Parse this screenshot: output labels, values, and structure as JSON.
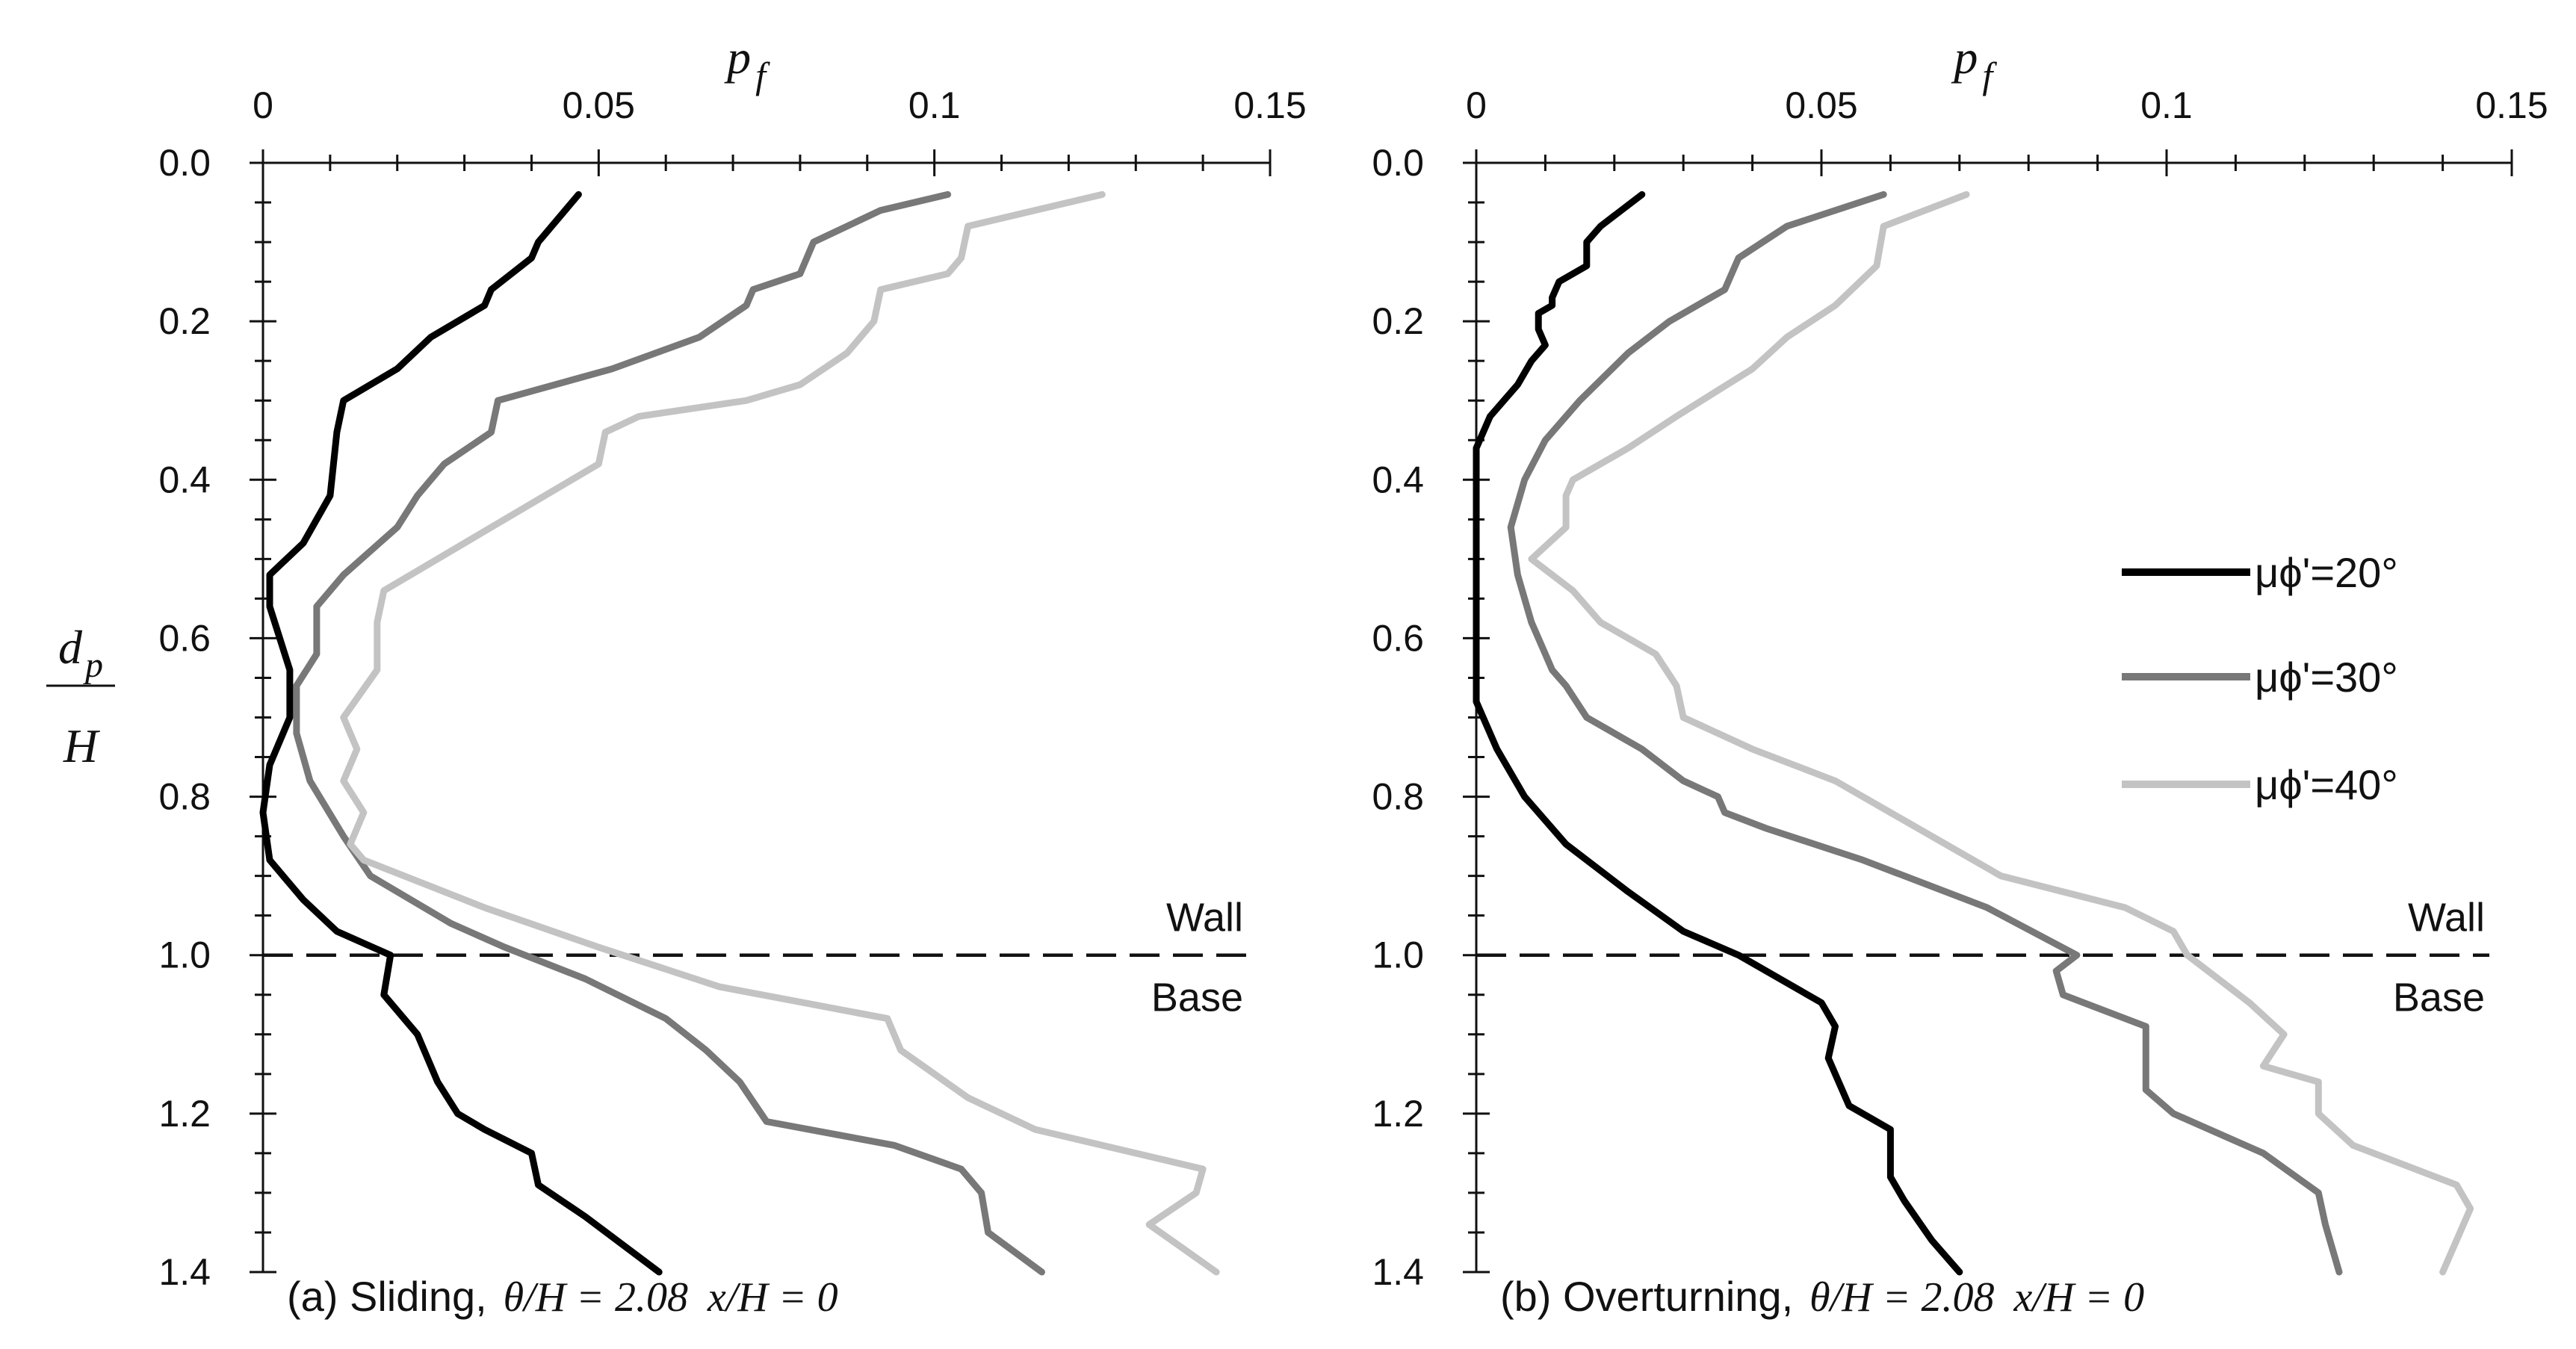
{
  "chart_data": [
    {
      "type": "line",
      "title": "",
      "xlabel": "p_f",
      "ylabel": "d_p / H",
      "xlim": [
        0,
        0.15
      ],
      "ylim": [
        0,
        1.4
      ],
      "x_ticks": [
        0,
        0.05,
        0.1,
        0.15
      ],
      "x_tick_labels": [
        "0",
        "0.05",
        "0.1",
        "0.15"
      ],
      "y_ticks": [
        0,
        0.2,
        0.4,
        0.6,
        0.8,
        1.0,
        1.2,
        1.4
      ],
      "y_tick_labels": [
        "0.0",
        "0.2",
        "0.4",
        "0.6",
        "0.8",
        "1.0",
        "1.2",
        "1.4"
      ],
      "x_axis_position": "top",
      "y_axis_inverted": true,
      "grid": false,
      "annotations": {
        "above_line": "Wall",
        "below_line": "Base",
        "reference_line_y": 1.0
      },
      "caption": {
        "prefix": "(a) Sliding,",
        "theta_expr": "θ/H = 2.08",
        "x_expr": "x/H = 0"
      },
      "series": [
        {
          "name": "μϕ'=20°",
          "color": "#000000",
          "x": [
            0.047,
            0.041,
            0.04,
            0.034,
            0.033,
            0.025,
            0.02,
            0.012,
            0.011,
            0.01,
            0.006,
            0.001,
            0.001,
            0.004,
            0.004,
            0.001,
            0.0,
            0.001,
            0.006,
            0.011,
            0.019,
            0.018,
            0.023,
            0.026,
            0.029,
            0.033,
            0.04,
            0.041,
            0.048,
            0.059
          ],
          "y": [
            0.04,
            0.1,
            0.12,
            0.16,
            0.18,
            0.22,
            0.26,
            0.3,
            0.34,
            0.42,
            0.48,
            0.52,
            0.56,
            0.64,
            0.7,
            0.76,
            0.82,
            0.88,
            0.93,
            0.97,
            1.0,
            1.05,
            1.1,
            1.16,
            1.2,
            1.22,
            1.25,
            1.29,
            1.33,
            1.4
          ]
        },
        {
          "name": "μϕ'=30°",
          "color": "#787878",
          "x": [
            0.102,
            0.092,
            0.082,
            0.08,
            0.073,
            0.072,
            0.065,
            0.052,
            0.035,
            0.034,
            0.027,
            0.023,
            0.02,
            0.012,
            0.008,
            0.008,
            0.005,
            0.005,
            0.007,
            0.012,
            0.016,
            0.028,
            0.036,
            0.048,
            0.06,
            0.066,
            0.071,
            0.075,
            0.094,
            0.104,
            0.107,
            0.108,
            0.116
          ],
          "y": [
            0.04,
            0.06,
            0.1,
            0.14,
            0.16,
            0.18,
            0.22,
            0.26,
            0.3,
            0.34,
            0.38,
            0.42,
            0.46,
            0.52,
            0.56,
            0.62,
            0.66,
            0.72,
            0.78,
            0.85,
            0.9,
            0.96,
            0.99,
            1.03,
            1.08,
            1.12,
            1.16,
            1.21,
            1.24,
            1.27,
            1.3,
            1.35,
            1.4
          ]
        },
        {
          "name": "μϕ'=40°",
          "color": "#c3c3c3",
          "x": [
            0.125,
            0.105,
            0.104,
            0.102,
            0.092,
            0.091,
            0.087,
            0.08,
            0.072,
            0.056,
            0.051,
            0.05,
            0.042,
            0.03,
            0.018,
            0.017,
            0.017,
            0.012,
            0.014,
            0.012,
            0.015,
            0.013,
            0.015,
            0.021,
            0.033,
            0.05,
            0.068,
            0.093,
            0.095,
            0.105,
            0.115,
            0.14,
            0.139,
            0.132,
            0.137,
            0.142
          ],
          "y": [
            0.04,
            0.08,
            0.12,
            0.14,
            0.16,
            0.2,
            0.24,
            0.28,
            0.3,
            0.32,
            0.34,
            0.38,
            0.42,
            0.48,
            0.54,
            0.58,
            0.64,
            0.7,
            0.74,
            0.78,
            0.82,
            0.86,
            0.88,
            0.9,
            0.94,
            0.99,
            1.04,
            1.08,
            1.12,
            1.18,
            1.22,
            1.27,
            1.3,
            1.34,
            1.37,
            1.4
          ]
        }
      ]
    },
    {
      "type": "line",
      "title": "",
      "xlabel": "p_f",
      "ylabel": "d_p / H",
      "xlim": [
        0,
        0.15
      ],
      "ylim": [
        0,
        1.4
      ],
      "x_ticks": [
        0,
        0.05,
        0.1,
        0.15
      ],
      "x_tick_labels": [
        "0",
        "0.05",
        "0.1",
        "0.15"
      ],
      "y_ticks": [
        0,
        0.2,
        0.4,
        0.6,
        0.8,
        1.0,
        1.2,
        1.4
      ],
      "y_tick_labels": [
        "0.0",
        "0.2",
        "0.4",
        "0.6",
        "0.8",
        "1.0",
        "1.2",
        "1.4"
      ],
      "x_axis_position": "top",
      "y_axis_inverted": true,
      "grid": false,
      "legend_position": "right",
      "annotations": {
        "above_line": "Wall",
        "below_line": "Base",
        "reference_line_y": 1.0
      },
      "caption": {
        "prefix": "(b) Overturning,",
        "theta_expr": "θ/H = 2.08",
        "x_expr": "x/H = 0"
      },
      "series": [
        {
          "name": "μϕ'=20°",
          "color": "#000000",
          "x": [
            0.024,
            0.018,
            0.016,
            0.016,
            0.012,
            0.011,
            0.011,
            0.009,
            0.009,
            0.01,
            0.008,
            0.006,
            0.002,
            0.0,
            0.0,
            0.0,
            0.0,
            0.003,
            0.007,
            0.013,
            0.022,
            0.03,
            0.038,
            0.05,
            0.052,
            0.051,
            0.054,
            0.06,
            0.06,
            0.062,
            0.066,
            0.07
          ],
          "y": [
            0.04,
            0.08,
            0.1,
            0.13,
            0.15,
            0.17,
            0.18,
            0.19,
            0.21,
            0.23,
            0.25,
            0.28,
            0.32,
            0.36,
            0.5,
            0.62,
            0.68,
            0.74,
            0.8,
            0.86,
            0.92,
            0.97,
            1.0,
            1.06,
            1.09,
            1.13,
            1.19,
            1.22,
            1.28,
            1.31,
            1.36,
            1.4
          ]
        },
        {
          "name": "μϕ'=30°",
          "color": "#787878",
          "x": [
            0.059,
            0.045,
            0.038,
            0.036,
            0.028,
            0.022,
            0.015,
            0.01,
            0.007,
            0.005,
            0.006,
            0.008,
            0.01,
            0.011,
            0.013,
            0.016,
            0.024,
            0.03,
            0.035,
            0.036,
            0.042,
            0.056,
            0.074,
            0.087,
            0.084,
            0.085,
            0.097,
            0.097,
            0.101,
            0.114,
            0.122,
            0.123,
            0.125
          ],
          "y": [
            0.04,
            0.08,
            0.12,
            0.16,
            0.2,
            0.24,
            0.3,
            0.35,
            0.4,
            0.46,
            0.52,
            0.58,
            0.62,
            0.64,
            0.66,
            0.7,
            0.74,
            0.78,
            0.8,
            0.82,
            0.84,
            0.88,
            0.94,
            1.0,
            1.02,
            1.05,
            1.09,
            1.17,
            1.2,
            1.25,
            1.3,
            1.34,
            1.4
          ]
        },
        {
          "name": "μϕ'=40°",
          "color": "#c3c3c3",
          "x": [
            0.071,
            0.059,
            0.058,
            0.052,
            0.045,
            0.04,
            0.029,
            0.022,
            0.014,
            0.013,
            0.013,
            0.008,
            0.014,
            0.018,
            0.022,
            0.026,
            0.029,
            0.03,
            0.04,
            0.052,
            0.06,
            0.068,
            0.076,
            0.094,
            0.101,
            0.103,
            0.112,
            0.117,
            0.114,
            0.122,
            0.122,
            0.127,
            0.142,
            0.144,
            0.14
          ],
          "y": [
            0.04,
            0.08,
            0.13,
            0.18,
            0.22,
            0.26,
            0.32,
            0.36,
            0.4,
            0.42,
            0.46,
            0.5,
            0.54,
            0.58,
            0.6,
            0.62,
            0.66,
            0.7,
            0.74,
            0.78,
            0.82,
            0.86,
            0.9,
            0.94,
            0.97,
            1.0,
            1.06,
            1.1,
            1.14,
            1.16,
            1.2,
            1.24,
            1.29,
            1.32,
            1.4
          ]
        }
      ]
    }
  ]
}
